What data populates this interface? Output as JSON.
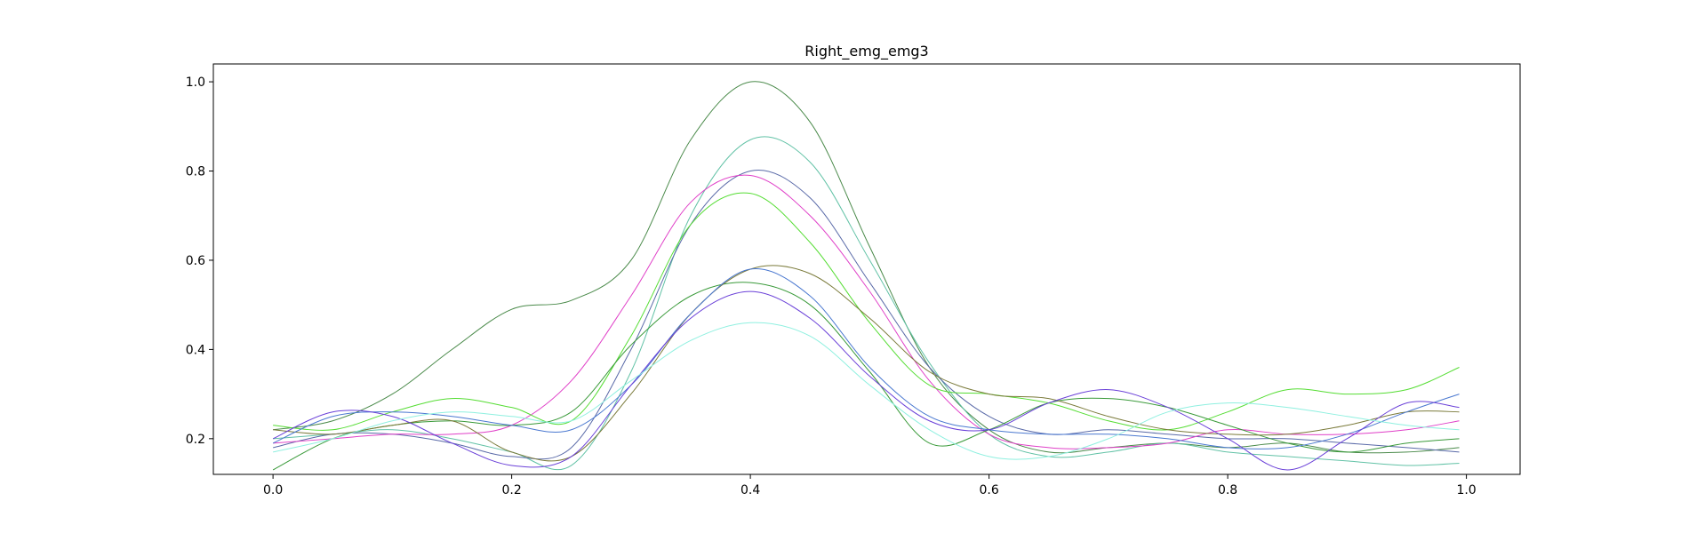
{
  "chart_data": {
    "type": "line",
    "title": "Right_emg_emg3",
    "xlabel": "",
    "ylabel": "",
    "xlim": [
      -0.05,
      1.045
    ],
    "ylim": [
      0.12,
      1.04
    ],
    "xticks": [
      0.0,
      0.2,
      0.4,
      0.6,
      0.8,
      1.0
    ],
    "xtick_labels": [
      "0.0",
      "0.2",
      "0.4",
      "0.6",
      "0.8",
      "1.0"
    ],
    "yticks": [
      0.2,
      0.4,
      0.6,
      0.8,
      1.0
    ],
    "ytick_labels": [
      "0.2",
      "0.4",
      "0.6",
      "0.8",
      "1.0"
    ],
    "grid": false,
    "legend": false,
    "series": [
      {
        "color": "#4a8a4a",
        "points": [
          [
            0.0,
            0.22
          ],
          [
            0.05,
            0.24
          ],
          [
            0.1,
            0.3
          ],
          [
            0.15,
            0.4
          ],
          [
            0.2,
            0.49
          ],
          [
            0.25,
            0.51
          ],
          [
            0.3,
            0.6
          ],
          [
            0.35,
            0.87
          ],
          [
            0.4,
            1.0
          ],
          [
            0.45,
            0.91
          ],
          [
            0.5,
            0.63
          ],
          [
            0.55,
            0.36
          ],
          [
            0.6,
            0.22
          ],
          [
            0.65,
            0.17
          ],
          [
            0.7,
            0.18
          ],
          [
            0.75,
            0.19
          ],
          [
            0.8,
            0.18
          ],
          [
            0.85,
            0.19
          ],
          [
            0.9,
            0.17
          ],
          [
            0.95,
            0.17
          ],
          [
            0.994,
            0.18
          ]
        ]
      },
      {
        "color": "#62c2a6",
        "points": [
          [
            0.0,
            0.2
          ],
          [
            0.05,
            0.21
          ],
          [
            0.1,
            0.22
          ],
          [
            0.15,
            0.2
          ],
          [
            0.2,
            0.17
          ],
          [
            0.25,
            0.14
          ],
          [
            0.3,
            0.35
          ],
          [
            0.35,
            0.7
          ],
          [
            0.4,
            0.87
          ],
          [
            0.45,
            0.82
          ],
          [
            0.5,
            0.6
          ],
          [
            0.55,
            0.37
          ],
          [
            0.6,
            0.21
          ],
          [
            0.65,
            0.16
          ],
          [
            0.7,
            0.17
          ],
          [
            0.75,
            0.19
          ],
          [
            0.8,
            0.17
          ],
          [
            0.85,
            0.16
          ],
          [
            0.9,
            0.15
          ],
          [
            0.95,
            0.14
          ],
          [
            0.994,
            0.145
          ]
        ]
      },
      {
        "color": "#5a6aa8",
        "points": [
          [
            0.0,
            0.18
          ],
          [
            0.05,
            0.21
          ],
          [
            0.1,
            0.21
          ],
          [
            0.15,
            0.19
          ],
          [
            0.2,
            0.16
          ],
          [
            0.25,
            0.18
          ],
          [
            0.3,
            0.4
          ],
          [
            0.35,
            0.68
          ],
          [
            0.4,
            0.8
          ],
          [
            0.45,
            0.74
          ],
          [
            0.5,
            0.55
          ],
          [
            0.55,
            0.36
          ],
          [
            0.6,
            0.25
          ],
          [
            0.65,
            0.21
          ],
          [
            0.7,
            0.22
          ],
          [
            0.75,
            0.21
          ],
          [
            0.8,
            0.2
          ],
          [
            0.85,
            0.2
          ],
          [
            0.9,
            0.19
          ],
          [
            0.95,
            0.18
          ],
          [
            0.994,
            0.17
          ]
        ]
      },
      {
        "color": "#e040c8",
        "points": [
          [
            0.0,
            0.19
          ],
          [
            0.05,
            0.2
          ],
          [
            0.1,
            0.21
          ],
          [
            0.15,
            0.21
          ],
          [
            0.2,
            0.23
          ],
          [
            0.25,
            0.33
          ],
          [
            0.3,
            0.52
          ],
          [
            0.35,
            0.73
          ],
          [
            0.4,
            0.79
          ],
          [
            0.45,
            0.7
          ],
          [
            0.5,
            0.53
          ],
          [
            0.55,
            0.33
          ],
          [
            0.6,
            0.21
          ],
          [
            0.65,
            0.18
          ],
          [
            0.7,
            0.18
          ],
          [
            0.75,
            0.19
          ],
          [
            0.8,
            0.22
          ],
          [
            0.85,
            0.21
          ],
          [
            0.9,
            0.21
          ],
          [
            0.95,
            0.22
          ],
          [
            0.994,
            0.24
          ]
        ]
      },
      {
        "color": "#55dd33",
        "points": [
          [
            0.0,
            0.23
          ],
          [
            0.05,
            0.22
          ],
          [
            0.1,
            0.26
          ],
          [
            0.15,
            0.29
          ],
          [
            0.2,
            0.27
          ],
          [
            0.25,
            0.24
          ],
          [
            0.3,
            0.43
          ],
          [
            0.35,
            0.68
          ],
          [
            0.4,
            0.75
          ],
          [
            0.45,
            0.64
          ],
          [
            0.5,
            0.46
          ],
          [
            0.55,
            0.32
          ],
          [
            0.6,
            0.3
          ],
          [
            0.65,
            0.28
          ],
          [
            0.7,
            0.24
          ],
          [
            0.75,
            0.22
          ],
          [
            0.8,
            0.26
          ],
          [
            0.85,
            0.31
          ],
          [
            0.9,
            0.3
          ],
          [
            0.95,
            0.31
          ],
          [
            0.994,
            0.36
          ]
        ]
      },
      {
        "color": "#3a9a3a",
        "points": [
          [
            0.0,
            0.13
          ],
          [
            0.05,
            0.2
          ],
          [
            0.1,
            0.23
          ],
          [
            0.15,
            0.24
          ],
          [
            0.2,
            0.23
          ],
          [
            0.25,
            0.26
          ],
          [
            0.3,
            0.41
          ],
          [
            0.35,
            0.52
          ],
          [
            0.4,
            0.55
          ],
          [
            0.45,
            0.5
          ],
          [
            0.5,
            0.35
          ],
          [
            0.55,
            0.19
          ],
          [
            0.6,
            0.22
          ],
          [
            0.65,
            0.28
          ],
          [
            0.7,
            0.29
          ],
          [
            0.75,
            0.27
          ],
          [
            0.8,
            0.23
          ],
          [
            0.85,
            0.19
          ],
          [
            0.9,
            0.17
          ],
          [
            0.95,
            0.19
          ],
          [
            0.994,
            0.2
          ]
        ]
      },
      {
        "color": "#7a7a3a",
        "points": [
          [
            0.0,
            0.22
          ],
          [
            0.05,
            0.21
          ],
          [
            0.1,
            0.23
          ],
          [
            0.15,
            0.24
          ],
          [
            0.2,
            0.17
          ],
          [
            0.25,
            0.16
          ],
          [
            0.3,
            0.3
          ],
          [
            0.35,
            0.48
          ],
          [
            0.4,
            0.58
          ],
          [
            0.45,
            0.57
          ],
          [
            0.5,
            0.47
          ],
          [
            0.55,
            0.35
          ],
          [
            0.6,
            0.3
          ],
          [
            0.65,
            0.29
          ],
          [
            0.7,
            0.25
          ],
          [
            0.75,
            0.22
          ],
          [
            0.8,
            0.21
          ],
          [
            0.85,
            0.21
          ],
          [
            0.9,
            0.23
          ],
          [
            0.95,
            0.26
          ],
          [
            0.994,
            0.26
          ]
        ]
      },
      {
        "color": "#4a78d0",
        "points": [
          [
            0.0,
            0.19
          ],
          [
            0.05,
            0.25
          ],
          [
            0.1,
            0.26
          ],
          [
            0.15,
            0.25
          ],
          [
            0.2,
            0.23
          ],
          [
            0.25,
            0.22
          ],
          [
            0.3,
            0.32
          ],
          [
            0.35,
            0.48
          ],
          [
            0.4,
            0.58
          ],
          [
            0.45,
            0.52
          ],
          [
            0.5,
            0.36
          ],
          [
            0.55,
            0.25
          ],
          [
            0.6,
            0.22
          ],
          [
            0.65,
            0.21
          ],
          [
            0.7,
            0.21
          ],
          [
            0.75,
            0.2
          ],
          [
            0.8,
            0.18
          ],
          [
            0.85,
            0.18
          ],
          [
            0.9,
            0.21
          ],
          [
            0.95,
            0.26
          ],
          [
            0.994,
            0.3
          ]
        ]
      },
      {
        "color": "#6a40d8",
        "points": [
          [
            0.0,
            0.2
          ],
          [
            0.05,
            0.26
          ],
          [
            0.1,
            0.25
          ],
          [
            0.15,
            0.19
          ],
          [
            0.2,
            0.14
          ],
          [
            0.25,
            0.16
          ],
          [
            0.3,
            0.32
          ],
          [
            0.35,
            0.47
          ],
          [
            0.4,
            0.53
          ],
          [
            0.45,
            0.47
          ],
          [
            0.5,
            0.34
          ],
          [
            0.55,
            0.24
          ],
          [
            0.6,
            0.22
          ],
          [
            0.65,
            0.28
          ],
          [
            0.7,
            0.31
          ],
          [
            0.75,
            0.27
          ],
          [
            0.8,
            0.2
          ],
          [
            0.85,
            0.13
          ],
          [
            0.9,
            0.2
          ],
          [
            0.95,
            0.28
          ],
          [
            0.994,
            0.27
          ]
        ]
      },
      {
        "color": "#8ff0e0",
        "points": [
          [
            0.0,
            0.17
          ],
          [
            0.05,
            0.2
          ],
          [
            0.1,
            0.24
          ],
          [
            0.15,
            0.26
          ],
          [
            0.2,
            0.25
          ],
          [
            0.25,
            0.24
          ],
          [
            0.3,
            0.33
          ],
          [
            0.35,
            0.42
          ],
          [
            0.4,
            0.46
          ],
          [
            0.45,
            0.43
          ],
          [
            0.5,
            0.32
          ],
          [
            0.55,
            0.22
          ],
          [
            0.6,
            0.16
          ],
          [
            0.65,
            0.16
          ],
          [
            0.7,
            0.2
          ],
          [
            0.75,
            0.26
          ],
          [
            0.8,
            0.28
          ],
          [
            0.85,
            0.27
          ],
          [
            0.9,
            0.25
          ],
          [
            0.95,
            0.23
          ],
          [
            0.994,
            0.22
          ]
        ]
      }
    ]
  }
}
